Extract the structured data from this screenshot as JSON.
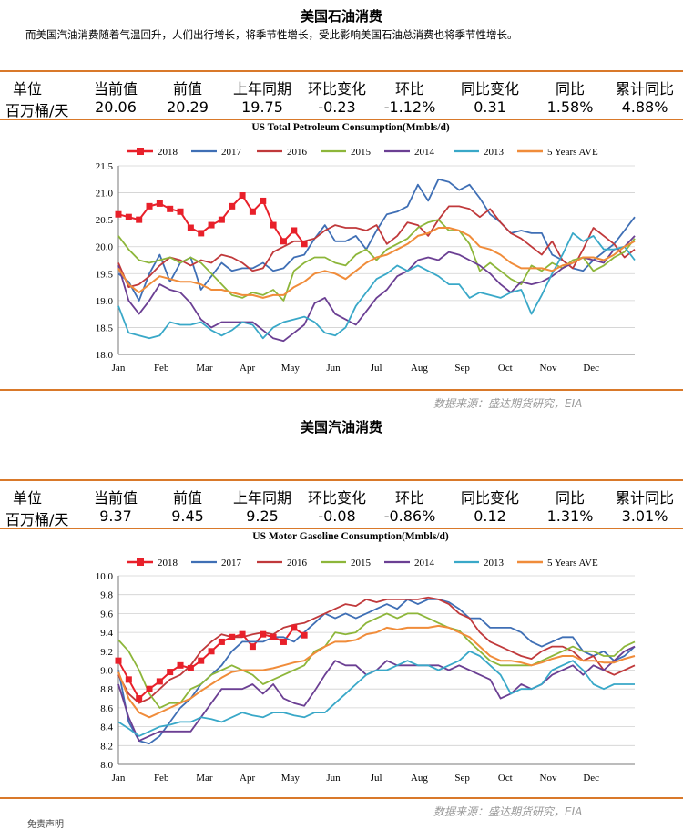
{
  "section1": {
    "title": "美国石油消费",
    "description": "而美国汽油消费随着气温回升，人们出行增长，将季节性增长，受此影响美国石油总消费也将季节性增长。",
    "table": {
      "headers": [
        "单位",
        "当前值",
        "前值",
        "上年同期",
        "环比变化",
        "环比",
        "同比变化",
        "同比",
        "累计同比"
      ],
      "values": [
        "百万桶/天",
        "20.06",
        "20.29",
        "19.75",
        "-0.23",
        "-1.12%",
        "0.31",
        "1.58%",
        "4.88%"
      ]
    },
    "source": "数据来源：盛达期货研究，EIA"
  },
  "section2": {
    "title": "美国汽油消费",
    "table": {
      "headers": [
        "单位",
        "当前值",
        "前值",
        "上年同期",
        "环比变化",
        "环比",
        "同比变化",
        "同比",
        "累计同比"
      ],
      "values": [
        "百万桶/天",
        "9.37",
        "9.45",
        "9.25",
        "-0.08",
        "-0.86%",
        "0.12",
        "1.31%",
        "3.01%"
      ]
    },
    "source": "数据来源：盛达期货研究，EIA"
  },
  "footer_text": "免责声明",
  "chart_data": [
    {
      "type": "line",
      "title": "US Total Petroleum Consumption(Mmbls/d)",
      "ylim": [
        18.0,
        21.5
      ],
      "yticks": [
        "18.0",
        "18.5",
        "19.0",
        "19.5",
        "20.0",
        "20.5",
        "21.0",
        "21.5"
      ],
      "xlabels": [
        "Jan",
        "Feb",
        "Mar",
        "Apr",
        "May",
        "Jun",
        "Jul",
        "Aug",
        "Sep",
        "Oct",
        "Nov",
        "Dec"
      ],
      "legend": "top",
      "grid": true,
      "series": [
        {
          "name": "2018",
          "color": "#e8202a",
          "marker": "square",
          "width": 2,
          "values": [
            20.6,
            20.55,
            20.5,
            20.75,
            20.8,
            20.7,
            20.65,
            20.35,
            20.25,
            20.4,
            20.5,
            20.75,
            20.95,
            20.65,
            20.85,
            20.4,
            20.1,
            20.3,
            20.05
          ]
        },
        {
          "name": "2017",
          "color": "#3f6fb5",
          "width": 1.8,
          "values": [
            19.5,
            19.35,
            19.0,
            19.5,
            19.85,
            19.35,
            19.7,
            19.8,
            19.2,
            19.45,
            19.7,
            19.55,
            19.6,
            19.6,
            19.7,
            19.55,
            19.6,
            19.8,
            19.85,
            20.15,
            20.4,
            20.1,
            20.1,
            20.2,
            19.95,
            20.3,
            20.6,
            20.65,
            20.75,
            21.15,
            20.85,
            21.25,
            21.2,
            21.05,
            21.15,
            20.9,
            20.6,
            20.45,
            20.25,
            20.3,
            20.25,
            20.25,
            19.85,
            19.75,
            19.6,
            19.55,
            19.75,
            19.9,
            20.05,
            20.3,
            20.55
          ]
        },
        {
          "name": "2016",
          "color": "#c0393b",
          "width": 1.8,
          "values": [
            19.7,
            19.25,
            19.3,
            19.45,
            19.65,
            19.8,
            19.75,
            19.65,
            19.75,
            19.7,
            19.85,
            19.8,
            19.7,
            19.55,
            19.6,
            19.9,
            20.0,
            20.1,
            20.1,
            20.15,
            20.3,
            20.4,
            20.35,
            20.35,
            20.3,
            20.4,
            20.05,
            20.2,
            20.45,
            20.4,
            20.2,
            20.5,
            20.75,
            20.75,
            20.7,
            20.55,
            20.7,
            20.45,
            20.25,
            20.15,
            20.0,
            19.85,
            20.1,
            19.75,
            19.6,
            19.95,
            20.35,
            20.2,
            20.05,
            19.8,
            19.95
          ]
        },
        {
          "name": "2015",
          "color": "#8db63a",
          "width": 1.8,
          "values": [
            20.2,
            19.95,
            19.75,
            19.7,
            19.75,
            19.8,
            19.7,
            19.8,
            19.7,
            19.5,
            19.3,
            19.1,
            19.05,
            19.15,
            19.1,
            19.2,
            19.0,
            19.55,
            19.7,
            19.8,
            19.8,
            19.7,
            19.65,
            19.85,
            19.95,
            19.75,
            19.95,
            20.05,
            20.15,
            20.35,
            20.45,
            20.5,
            20.3,
            20.3,
            20.05,
            19.55,
            19.7,
            19.55,
            19.4,
            19.3,
            19.65,
            19.55,
            19.7,
            19.6,
            19.75,
            19.8,
            19.55,
            19.65,
            19.8,
            19.9,
            20.15
          ]
        },
        {
          "name": "2014",
          "color": "#6b3f93",
          "width": 1.8,
          "values": [
            19.65,
            19.0,
            18.75,
            19.0,
            19.3,
            19.2,
            19.15,
            18.95,
            18.65,
            18.5,
            18.6,
            18.6,
            18.6,
            18.6,
            18.45,
            18.3,
            18.25,
            18.4,
            18.55,
            18.95,
            19.05,
            18.75,
            18.65,
            18.55,
            18.8,
            19.05,
            19.2,
            19.45,
            19.55,
            19.75,
            19.8,
            19.75,
            19.9,
            19.85,
            19.75,
            19.65,
            19.5,
            19.3,
            19.15,
            19.35,
            19.3,
            19.35,
            19.45,
            19.6,
            19.7,
            19.8,
            19.75,
            19.7,
            19.95,
            20.0,
            20.2
          ]
        },
        {
          "name": "2013",
          "color": "#39a8c8",
          "width": 1.8,
          "values": [
            18.9,
            18.4,
            18.35,
            18.3,
            18.35,
            18.6,
            18.55,
            18.55,
            18.6,
            18.45,
            18.35,
            18.45,
            18.6,
            18.55,
            18.3,
            18.5,
            18.6,
            18.65,
            18.7,
            18.6,
            18.4,
            18.35,
            18.5,
            18.9,
            19.15,
            19.4,
            19.5,
            19.65,
            19.55,
            19.65,
            19.55,
            19.45,
            19.3,
            19.3,
            19.05,
            19.15,
            19.1,
            19.05,
            19.15,
            19.2,
            18.75,
            19.1,
            19.5,
            19.85,
            20.25,
            20.1,
            20.2,
            19.95,
            19.95,
            20.0,
            19.75
          ]
        },
        {
          "name": "5 Years AVE",
          "color": "#f08c3a",
          "width": 2,
          "values": [
            19.6,
            19.3,
            19.15,
            19.3,
            19.45,
            19.4,
            19.35,
            19.35,
            19.3,
            19.2,
            19.2,
            19.15,
            19.1,
            19.1,
            19.05,
            19.1,
            19.1,
            19.25,
            19.35,
            19.5,
            19.55,
            19.5,
            19.4,
            19.55,
            19.7,
            19.8,
            19.85,
            19.95,
            20.05,
            20.2,
            20.25,
            20.35,
            20.35,
            20.3,
            20.2,
            20.0,
            19.95,
            19.85,
            19.7,
            19.6,
            19.6,
            19.6,
            19.55,
            19.65,
            19.7,
            19.8,
            19.8,
            19.75,
            19.85,
            20.0,
            20.1
          ]
        }
      ]
    },
    {
      "type": "line",
      "title": "US Motor Gasoline Consumption(Mmbls/d)",
      "ylim": [
        8.0,
        10.0
      ],
      "yticks": [
        "8.0",
        "8.2",
        "8.4",
        "8.6",
        "8.8",
        "9.0",
        "9.2",
        "9.4",
        "9.6",
        "9.8",
        "10.0"
      ],
      "xlabels": [
        "Jan",
        "Feb",
        "Mar",
        "Apr",
        "May",
        "Jun",
        "Jul",
        "Aug",
        "Sep",
        "Oct",
        "Nov",
        "Dec"
      ],
      "legend": "top",
      "grid": true,
      "series": [
        {
          "name": "2018",
          "color": "#e8202a",
          "marker": "square",
          "width": 2,
          "values": [
            9.1,
            8.9,
            8.7,
            8.8,
            8.88,
            8.98,
            9.05,
            9.02,
            9.1,
            9.2,
            9.3,
            9.35,
            9.38,
            9.25,
            9.38,
            9.35,
            9.3,
            9.45,
            9.37
          ]
        },
        {
          "name": "2017",
          "color": "#3f6fb5",
          "width": 1.8,
          "values": [
            9.0,
            8.45,
            8.25,
            8.22,
            8.3,
            8.45,
            8.6,
            8.7,
            8.85,
            8.95,
            9.05,
            9.2,
            9.3,
            9.3,
            9.3,
            9.35,
            9.35,
            9.3,
            9.4,
            9.5,
            9.6,
            9.55,
            9.6,
            9.55,
            9.6,
            9.65,
            9.7,
            9.65,
            9.75,
            9.7,
            9.75,
            9.75,
            9.72,
            9.65,
            9.55,
            9.55,
            9.45,
            9.45,
            9.45,
            9.4,
            9.3,
            9.25,
            9.3,
            9.35,
            9.35,
            9.2,
            9.15,
            9.2,
            9.1,
            9.15,
            9.25
          ]
        },
        {
          "name": "2016",
          "color": "#c0393b",
          "width": 1.8,
          "values": [
            8.95,
            8.75,
            8.65,
            8.7,
            8.8,
            8.9,
            8.95,
            9.05,
            9.2,
            9.3,
            9.38,
            9.35,
            9.35,
            9.38,
            9.4,
            9.38,
            9.45,
            9.48,
            9.5,
            9.55,
            9.6,
            9.65,
            9.7,
            9.68,
            9.75,
            9.72,
            9.75,
            9.75,
            9.75,
            9.75,
            9.77,
            9.75,
            9.7,
            9.6,
            9.55,
            9.4,
            9.3,
            9.25,
            9.2,
            9.15,
            9.12,
            9.2,
            9.25,
            9.25,
            9.2,
            9.1,
            9.15,
            9.0,
            8.95,
            9.0,
            9.05
          ]
        },
        {
          "name": "2015",
          "color": "#8db63a",
          "width": 1.8,
          "values": [
            9.32,
            9.2,
            9.0,
            8.75,
            8.6,
            8.65,
            8.65,
            8.8,
            8.85,
            8.95,
            9.0,
            9.05,
            9.0,
            8.95,
            8.85,
            8.9,
            8.95,
            9.0,
            9.05,
            9.2,
            9.25,
            9.4,
            9.38,
            9.4,
            9.5,
            9.55,
            9.6,
            9.55,
            9.6,
            9.6,
            9.55,
            9.5,
            9.45,
            9.42,
            9.3,
            9.2,
            9.1,
            9.05,
            9.05,
            9.05,
            9.05,
            9.1,
            9.15,
            9.2,
            9.25,
            9.2,
            9.2,
            9.15,
            9.15,
            9.25,
            9.3
          ]
        },
        {
          "name": "2014",
          "color": "#6b3f93",
          "width": 1.8,
          "values": [
            8.85,
            8.5,
            8.25,
            8.3,
            8.35,
            8.35,
            8.35,
            8.35,
            8.5,
            8.65,
            8.8,
            8.8,
            8.8,
            8.85,
            8.75,
            8.85,
            8.7,
            8.65,
            8.62,
            8.78,
            8.95,
            9.1,
            9.05,
            9.05,
            8.95,
            9.0,
            9.1,
            9.05,
            9.05,
            9.05,
            9.05,
            9.05,
            9.0,
            9.05,
            9.0,
            8.95,
            8.9,
            8.7,
            8.75,
            8.85,
            8.8,
            8.85,
            8.95,
            9.0,
            9.05,
            8.95,
            9.05,
            9.0,
            9.1,
            9.2,
            9.25
          ]
        },
        {
          "name": "2013",
          "color": "#39a8c8",
          "width": 1.8,
          "values": [
            8.45,
            8.38,
            8.3,
            8.35,
            8.4,
            8.42,
            8.45,
            8.45,
            8.5,
            8.48,
            8.45,
            8.5,
            8.55,
            8.52,
            8.5,
            8.55,
            8.55,
            8.52,
            8.5,
            8.55,
            8.55,
            8.65,
            8.75,
            8.85,
            8.95,
            9.0,
            9.0,
            9.05,
            9.1,
            9.05,
            9.05,
            9.0,
            9.05,
            9.1,
            9.2,
            9.15,
            9.05,
            8.95,
            8.75,
            8.8,
            8.8,
            8.85,
            9.0,
            9.05,
            9.1,
            9.0,
            8.85,
            8.8,
            8.85,
            8.85,
            8.85
          ]
        },
        {
          "name": "5 Years AVE",
          "color": "#f08c3a",
          "width": 2,
          "values": [
            8.98,
            8.7,
            8.55,
            8.5,
            8.55,
            8.6,
            8.65,
            8.7,
            8.78,
            8.85,
            8.92,
            8.98,
            9.0,
            9.0,
            9.0,
            9.02,
            9.05,
            9.08,
            9.1,
            9.18,
            9.25,
            9.3,
            9.3,
            9.32,
            9.38,
            9.4,
            9.45,
            9.43,
            9.45,
            9.45,
            9.45,
            9.47,
            9.45,
            9.4,
            9.35,
            9.25,
            9.15,
            9.1,
            9.1,
            9.08,
            9.05,
            9.08,
            9.12,
            9.15,
            9.15,
            9.1,
            9.1,
            9.08,
            9.08,
            9.12,
            9.15
          ]
        }
      ]
    }
  ]
}
